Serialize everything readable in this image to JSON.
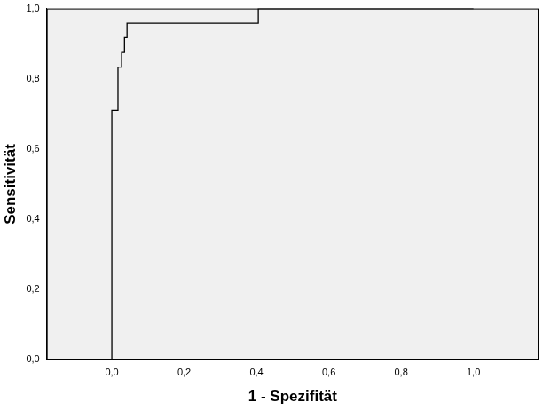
{
  "chart_data": {
    "type": "line",
    "x_label": "1 - Spezifität",
    "y_label": "Sensitivität",
    "x": [
      0,
      0,
      0.017,
      0.017,
      0.027,
      0.027,
      0.035,
      0.035,
      0.042,
      0.042,
      0.405,
      0.405,
      1
    ],
    "series": [
      {
        "color": "#000000",
        "line_style": "solid",
        "values": [
          0,
          0.71,
          0.71,
          0.833,
          0.833,
          0.875,
          0.875,
          0.917,
          0.917,
          0.958,
          0.958,
          1,
          1
        ]
      }
    ],
    "xlim": [
      -0.18,
      1.18
    ],
    "ylim": [
      0,
      1
    ],
    "xticks": [
      {
        "value": 0,
        "label": "0,0"
      },
      {
        "value": 0.2,
        "label": "0,2"
      },
      {
        "value": 0.4,
        "label": "0,4"
      },
      {
        "value": 0.6,
        "label": "0,6"
      },
      {
        "value": 0.8,
        "label": "0,8"
      },
      {
        "value": 1,
        "label": "1,0"
      }
    ],
    "yticks": [
      {
        "value": 0,
        "label": "0,0"
      },
      {
        "value": 0.2,
        "label": "0,2"
      },
      {
        "value": 0.4,
        "label": "0,4"
      },
      {
        "value": 0.6,
        "label": "0,6"
      },
      {
        "value": 0.8,
        "label": "0,8"
      },
      {
        "value": 1,
        "label": "1,0"
      }
    ],
    "grid": false
  }
}
